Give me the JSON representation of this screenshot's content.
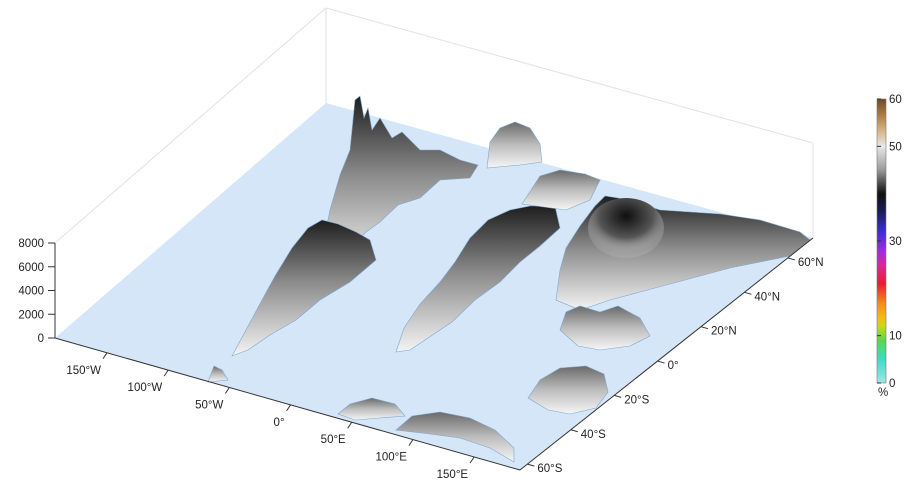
{
  "chart_data": {
    "type": "3d-surface",
    "title": "",
    "xlabel": "",
    "ylabel": "",
    "zlabel": "",
    "x_ticks": [
      "150°W",
      "100°W",
      "50°W",
      "0°",
      "50°E",
      "100°E",
      "150°E"
    ],
    "y_ticks": [
      "60°S",
      "40°S",
      "20°S",
      "0°",
      "20°N",
      "40°N",
      "60°N"
    ],
    "z_ticks": [
      "0",
      "2000",
      "4000",
      "6000",
      "8000"
    ],
    "zlim": [
      0,
      8000
    ],
    "grid": false,
    "surface_base_color": "#d4e6f7",
    "colorbar": {
      "unit": "%",
      "range": [
        0,
        60
      ],
      "ticks": [
        "0",
        "10",
        "30",
        "50",
        "60"
      ],
      "stops": [
        {
          "v": 0,
          "color": "#9fe6e6"
        },
        {
          "v": 5,
          "color": "#3fd9c8"
        },
        {
          "v": 9,
          "color": "#5bd64a"
        },
        {
          "v": 12,
          "color": "#c8d81c"
        },
        {
          "v": 14,
          "color": "#f5b81a"
        },
        {
          "v": 17,
          "color": "#f08a1d"
        },
        {
          "v": 21,
          "color": "#e81c32"
        },
        {
          "v": 25,
          "color": "#d42a9c"
        },
        {
          "v": 28,
          "color": "#9b2ce0"
        },
        {
          "v": 32,
          "color": "#3a2fd4"
        },
        {
          "v": 36,
          "color": "#1c1e5a"
        },
        {
          "v": 40,
          "color": "#101010"
        },
        {
          "v": 45,
          "color": "#9a9a9a"
        },
        {
          "v": 50,
          "color": "#e8e8e8"
        },
        {
          "v": 53,
          "color": "#d7b98c"
        },
        {
          "v": 57,
          "color": "#a8753f"
        },
        {
          "v": 60,
          "color": "#6e4a26"
        }
      ]
    },
    "colors": {
      "terrain_dark": "#1e1e1e",
      "terrain_mid": "#8c8c8c",
      "terrain_light": "#f2f2f2",
      "axis": "#333333"
    }
  }
}
